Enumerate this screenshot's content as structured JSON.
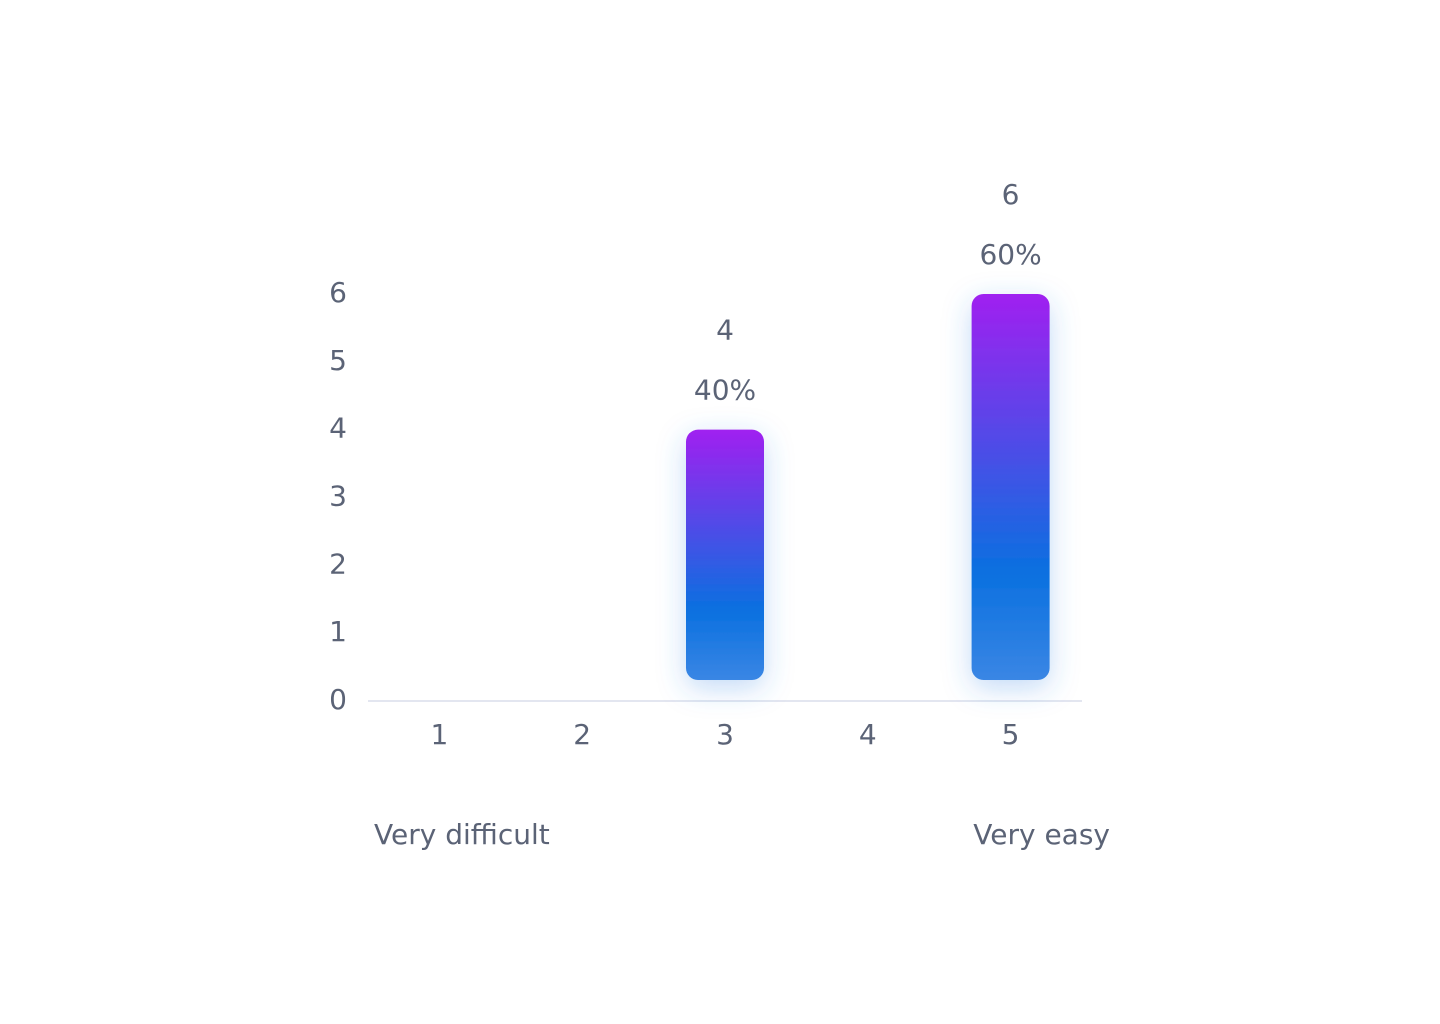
{
  "chart_data": {
    "type": "bar",
    "categories": [
      "1",
      "2",
      "3",
      "4",
      "5"
    ],
    "values": [
      0,
      0,
      4,
      0,
      6
    ],
    "percent_values": [
      0,
      0,
      40,
      0,
      60
    ],
    "percent_labels": [
      null,
      null,
      "40%",
      null,
      "60%"
    ],
    "ylim": [
      0,
      6
    ],
    "yticks": [
      0,
      1,
      2,
      3,
      4,
      5,
      6
    ],
    "colors": [
      "#a020f0",
      "#0a70e0",
      "#3a86e4"
    ],
    "annotations": {
      "low": "Very difficult",
      "high": "Very easy"
    }
  }
}
